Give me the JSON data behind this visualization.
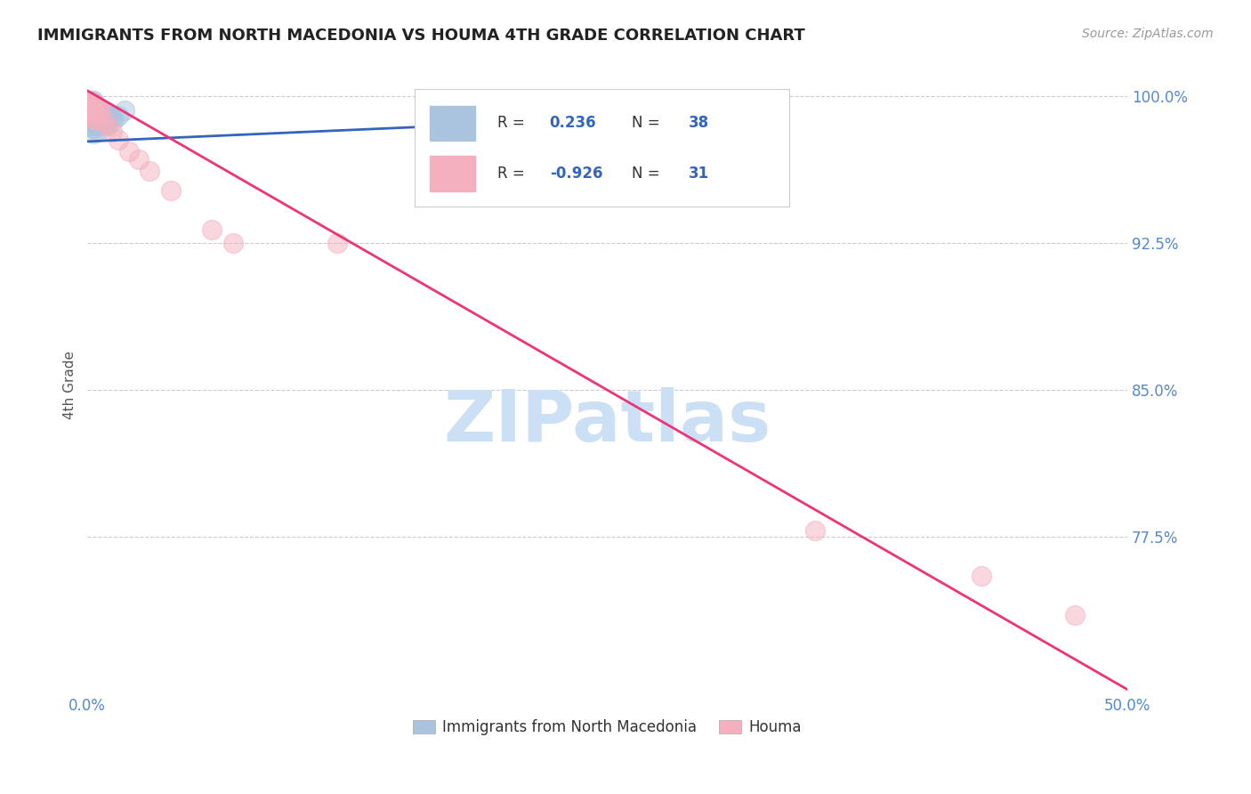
{
  "title": "IMMIGRANTS FROM NORTH MACEDONIA VS HOUMA 4TH GRADE CORRELATION CHART",
  "source": "Source: ZipAtlas.com",
  "ylabel": "4th Grade",
  "xlim": [
    0.0,
    0.5
  ],
  "ylim": [
    0.695,
    1.01
  ],
  "xticks": [
    0.0,
    0.1,
    0.2,
    0.3,
    0.4,
    0.5
  ],
  "xticklabels": [
    "0.0%",
    "",
    "",
    "",
    "",
    "50.0%"
  ],
  "yticks": [
    0.775,
    0.85,
    0.925,
    1.0
  ],
  "yticklabels": [
    "77.5%",
    "85.0%",
    "92.5%",
    "100.0%"
  ],
  "blue_R": "0.236",
  "blue_N": "38",
  "pink_R": "-0.926",
  "pink_N": "31",
  "blue_scatter_color": "#aac4e0",
  "pink_scatter_color": "#f4b0be",
  "blue_line_color": "#3366bb",
  "pink_line_color": "#ee3377",
  "watermark": "ZIPatlas",
  "watermark_color": "#cce0f5",
  "legend_blue_label": "Immigrants from North Macedonia",
  "legend_pink_label": "Houma",
  "blue_scatter_x": [
    0.0005,
    0.001,
    0.0015,
    0.001,
    0.002,
    0.0005,
    0.003,
    0.001,
    0.002,
    0.0005,
    0.002,
    0.003,
    0.001,
    0.003,
    0.002,
    0.004,
    0.003,
    0.005,
    0.004,
    0.003,
    0.005,
    0.004,
    0.006,
    0.005,
    0.007,
    0.006,
    0.008,
    0.007,
    0.009,
    0.008,
    0.01,
    0.009,
    0.011,
    0.01,
    0.012,
    0.013,
    0.015,
    0.018
  ],
  "blue_scatter_y": [
    0.997,
    0.995,
    0.998,
    0.993,
    0.996,
    0.991,
    0.998,
    0.989,
    0.994,
    0.987,
    0.992,
    0.996,
    0.985,
    0.993,
    0.988,
    0.996,
    0.984,
    0.993,
    0.99,
    0.981,
    0.99,
    0.986,
    0.993,
    0.982,
    0.99,
    0.985,
    0.991,
    0.986,
    0.99,
    0.986,
    0.991,
    0.986,
    0.99,
    0.985,
    0.989,
    0.988,
    0.99,
    0.993
  ],
  "pink_scatter_x": [
    0.0005,
    0.001,
    0.0005,
    0.001,
    0.002,
    0.001,
    0.002,
    0.003,
    0.002,
    0.003,
    0.003,
    0.004,
    0.004,
    0.005,
    0.005,
    0.006,
    0.007,
    0.008,
    0.01,
    0.012,
    0.015,
    0.02,
    0.025,
    0.03,
    0.04,
    0.06,
    0.07,
    0.12,
    0.35,
    0.43,
    0.475
  ],
  "pink_scatter_y": [
    0.997,
    0.996,
    0.994,
    0.993,
    0.995,
    0.991,
    0.993,
    0.997,
    0.989,
    0.995,
    0.991,
    0.996,
    0.988,
    0.994,
    0.99,
    0.994,
    0.991,
    0.987,
    0.985,
    0.982,
    0.978,
    0.972,
    0.968,
    0.962,
    0.952,
    0.932,
    0.925,
    0.925,
    0.778,
    0.755,
    0.735
  ],
  "blue_trendline_x": [
    0.0,
    0.28
  ],
  "blue_trendline_y": [
    0.977,
    0.99
  ],
  "pink_trendline_x": [
    0.0,
    0.5
  ],
  "pink_trendline_y": [
    1.003,
    0.697
  ],
  "background_color": "#ffffff",
  "grid_color": "#cccccc",
  "tick_color": "#5588cc",
  "axis_label_color": "#555555",
  "legend_text_color": "#333333",
  "legend_value_color": "#3366bb",
  "legend_border_color": "#cccccc"
}
